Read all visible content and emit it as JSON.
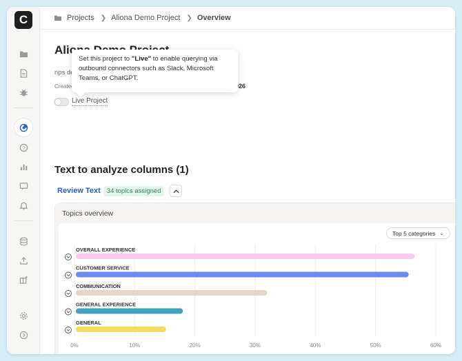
{
  "breadcrumb": {
    "projects": "Projects",
    "project": "Aliona Demo Project",
    "current": "Overview"
  },
  "sidebar": {
    "logo": "C",
    "icons": [
      "folder-icon",
      "document-icon",
      "bug-icon",
      "insights-icon",
      "help-icon",
      "bar-chart-icon",
      "message-icon",
      "bell-icon",
      "database-icon",
      "upload-icon",
      "integrations-icon",
      "settings-icon",
      "expand-icon"
    ],
    "accent": "#2b5fbf"
  },
  "project": {
    "title": "Aliona Demo Project",
    "description": "nps de",
    "created_label": "Created",
    "created_date": "026",
    "live_label": "Live Project"
  },
  "tooltip": {
    "before": "Set this project to ",
    "bold": "\"Live\"",
    "after": " to enable querying via outbound connectors such as Slack, Microsoft Teams, or ChatGPT."
  },
  "columns": {
    "title": "Text to analyze columns (1)",
    "column_name": "Review Text",
    "topics_badge": "34 topics assigned"
  },
  "topics": {
    "panel_title": "Topics overview",
    "filter": "Top 5 categories"
  },
  "chart_data": {
    "type": "bar",
    "orientation": "horizontal",
    "categories": [
      "OVERALL EXPERIENCE",
      "CUSTOMER SERVICE",
      "COMMUNICATION",
      "GENERAL EXPERIENCE",
      "GENERAL"
    ],
    "values": [
      56.5,
      55.5,
      32,
      18,
      15.2
    ],
    "colors": [
      "#f7c9f1",
      "#6a8cf0",
      "#e8d5c6",
      "#41a2bf",
      "#f8dc62"
    ],
    "xlim": [
      0,
      60
    ],
    "xticks": [
      "0%",
      "10%",
      "20%",
      "30%",
      "40%",
      "50%",
      "60%"
    ],
    "grid": true
  }
}
